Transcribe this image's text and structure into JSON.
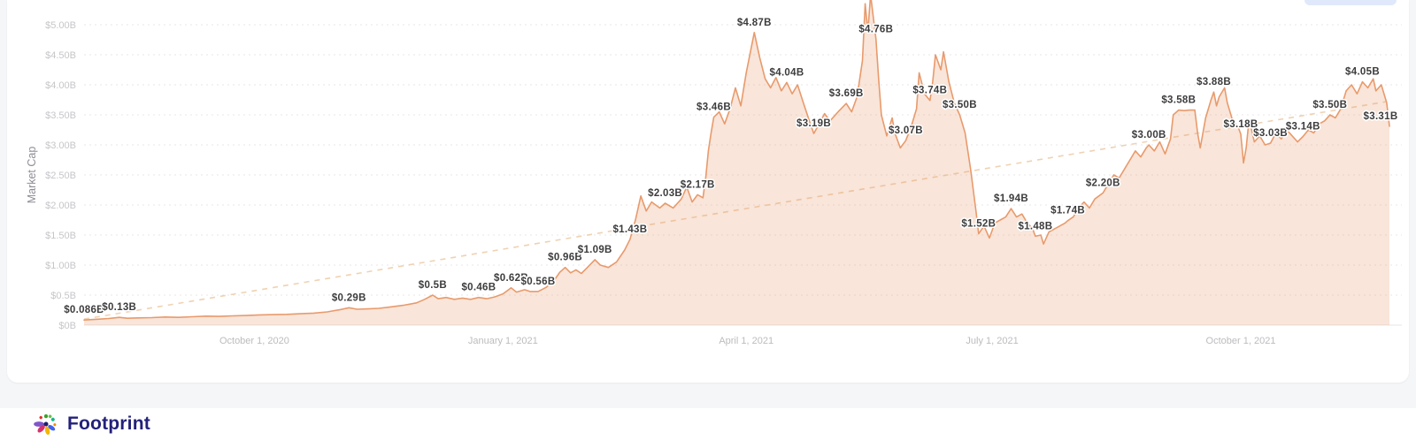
{
  "page": {
    "card_background": "#ffffff",
    "page_background": "#f5f6f8",
    "top_right_partial_element": {
      "color": "#dbe7fb"
    }
  },
  "footer": {
    "brand": "Footprint",
    "brand_color": "#23217a",
    "logo_petal_colors": [
      "#8056c9",
      "#d6336c",
      "#f2b705",
      "#4263eb",
      "#40a02b",
      "#69c046",
      "#12b886",
      "#e0312e",
      "#f08c00",
      "#1e1d6e"
    ]
  },
  "chart_data": {
    "type": "area",
    "title": "",
    "xlabel": "",
    "ylabel": "Market Cap",
    "ylim": [
      0,
      5.0
    ],
    "grid": "horizontal-dashed",
    "legend": "none",
    "line_color": "#e89a6c",
    "fill_color": "rgba(232,154,108,0.26)",
    "trend_color": "#eccaa4",
    "x_domain": [
      "2020-07-30",
      "2021-11-25"
    ],
    "y_ticks": [
      {
        "value": 0,
        "label": "$0B"
      },
      {
        "value": 0.5,
        "label": "$0.5B"
      },
      {
        "value": 1.0,
        "label": "$1.00B"
      },
      {
        "value": 1.5,
        "label": "$1.50B"
      },
      {
        "value": 2.0,
        "label": "$2.00B"
      },
      {
        "value": 2.5,
        "label": "$2.50B"
      },
      {
        "value": 3.0,
        "label": "$3.00B"
      },
      {
        "value": 3.5,
        "label": "$3.50B"
      },
      {
        "value": 4.0,
        "label": "$4.00B"
      },
      {
        "value": 4.5,
        "label": "$4.50B"
      },
      {
        "value": 5.0,
        "label": "$5.00B"
      }
    ],
    "x_ticks": [
      {
        "date": "2020-10-01",
        "label": "October 1, 2020"
      },
      {
        "date": "2021-01-01",
        "label": "January 1, 2021"
      },
      {
        "date": "2021-04-01",
        "label": "April 1, 2021"
      },
      {
        "date": "2021-07-01",
        "label": "July 1, 2021"
      },
      {
        "date": "2021-10-01",
        "label": "October 1, 2021"
      }
    ],
    "trend": {
      "style": "dashed",
      "from": [
        "2020-07-30",
        0.1
      ],
      "to": [
        "2021-11-24",
        3.72
      ]
    },
    "series": [
      {
        "name": "Market Cap",
        "points": [
          [
            "2020-07-30",
            0.086
          ],
          [
            "2020-08-04",
            0.098
          ],
          [
            "2020-08-08",
            0.11
          ],
          [
            "2020-08-12",
            0.13
          ],
          [
            "2020-08-15",
            0.115
          ],
          [
            "2020-08-19",
            0.12
          ],
          [
            "2020-08-24",
            0.125
          ],
          [
            "2020-08-29",
            0.135
          ],
          [
            "2020-09-03",
            0.13
          ],
          [
            "2020-09-08",
            0.14
          ],
          [
            "2020-09-13",
            0.15
          ],
          [
            "2020-09-18",
            0.145
          ],
          [
            "2020-09-23",
            0.155
          ],
          [
            "2020-09-28",
            0.16
          ],
          [
            "2020-10-03",
            0.17
          ],
          [
            "2020-10-08",
            0.175
          ],
          [
            "2020-10-13",
            0.18
          ],
          [
            "2020-10-18",
            0.19
          ],
          [
            "2020-10-23",
            0.2
          ],
          [
            "2020-10-28",
            0.22
          ],
          [
            "2020-11-02",
            0.26
          ],
          [
            "2020-11-05",
            0.29
          ],
          [
            "2020-11-08",
            0.265
          ],
          [
            "2020-11-12",
            0.27
          ],
          [
            "2020-11-16",
            0.28
          ],
          [
            "2020-11-20",
            0.3
          ],
          [
            "2020-11-25",
            0.33
          ],
          [
            "2020-11-30",
            0.37
          ],
          [
            "2020-12-03",
            0.43
          ],
          [
            "2020-12-06",
            0.5
          ],
          [
            "2020-12-08",
            0.44
          ],
          [
            "2020-12-11",
            0.46
          ],
          [
            "2020-12-14",
            0.43
          ],
          [
            "2020-12-17",
            0.45
          ],
          [
            "2020-12-20",
            0.43
          ],
          [
            "2020-12-23",
            0.46
          ],
          [
            "2020-12-26",
            0.44
          ],
          [
            "2020-12-29",
            0.47
          ],
          [
            "2021-01-01",
            0.52
          ],
          [
            "2021-01-04",
            0.62
          ],
          [
            "2021-01-06",
            0.55
          ],
          [
            "2021-01-09",
            0.59
          ],
          [
            "2021-01-11",
            0.56
          ],
          [
            "2021-01-14",
            0.56
          ],
          [
            "2021-01-17",
            0.63
          ],
          [
            "2021-01-20",
            0.75
          ],
          [
            "2021-01-22",
            0.88
          ],
          [
            "2021-01-24",
            0.96
          ],
          [
            "2021-01-26",
            0.87
          ],
          [
            "2021-01-28",
            0.92
          ],
          [
            "2021-01-30",
            0.86
          ],
          [
            "2021-02-01",
            0.95
          ],
          [
            "2021-02-04",
            1.09
          ],
          [
            "2021-02-06",
            1.0
          ],
          [
            "2021-02-09",
            0.96
          ],
          [
            "2021-02-12",
            1.05
          ],
          [
            "2021-02-15",
            1.25
          ],
          [
            "2021-02-17",
            1.43
          ],
          [
            "2021-02-19",
            1.75
          ],
          [
            "2021-02-21",
            2.15
          ],
          [
            "2021-02-23",
            1.9
          ],
          [
            "2021-02-25",
            2.05
          ],
          [
            "2021-02-28",
            1.95
          ],
          [
            "2021-03-02",
            2.03
          ],
          [
            "2021-03-05",
            1.95
          ],
          [
            "2021-03-08",
            2.1
          ],
          [
            "2021-03-10",
            2.3
          ],
          [
            "2021-03-12",
            2.05
          ],
          [
            "2021-03-14",
            2.17
          ],
          [
            "2021-03-16",
            2.12
          ],
          [
            "2021-03-17",
            2.45
          ],
          [
            "2021-03-18",
            2.9
          ],
          [
            "2021-03-19",
            3.2
          ],
          [
            "2021-03-20",
            3.46
          ],
          [
            "2021-03-22",
            3.55
          ],
          [
            "2021-03-24",
            3.35
          ],
          [
            "2021-03-26",
            3.6
          ],
          [
            "2021-03-28",
            3.95
          ],
          [
            "2021-03-30",
            3.65
          ],
          [
            "2021-04-01",
            4.2
          ],
          [
            "2021-04-04",
            4.87
          ],
          [
            "2021-04-06",
            4.45
          ],
          [
            "2021-04-08",
            4.1
          ],
          [
            "2021-04-10",
            3.95
          ],
          [
            "2021-04-12",
            4.12
          ],
          [
            "2021-04-14",
            3.9
          ],
          [
            "2021-04-16",
            4.04
          ],
          [
            "2021-04-18",
            3.85
          ],
          [
            "2021-04-20",
            4.0
          ],
          [
            "2021-04-22",
            3.72
          ],
          [
            "2021-04-24",
            3.45
          ],
          [
            "2021-04-26",
            3.19
          ],
          [
            "2021-04-28",
            3.35
          ],
          [
            "2021-04-30",
            3.52
          ],
          [
            "2021-05-02",
            3.4
          ],
          [
            "2021-05-05",
            3.55
          ],
          [
            "2021-05-08",
            3.69
          ],
          [
            "2021-05-10",
            3.55
          ],
          [
            "2021-05-12",
            3.8
          ],
          [
            "2021-05-14",
            4.4
          ],
          [
            "2021-05-15",
            5.35
          ],
          [
            "2021-05-16",
            4.88
          ],
          [
            "2021-05-17",
            5.5
          ],
          [
            "2021-05-19",
            4.76
          ],
          [
            "2021-05-20",
            4.1
          ],
          [
            "2021-05-21",
            3.5
          ],
          [
            "2021-05-23",
            3.15
          ],
          [
            "2021-05-25",
            3.45
          ],
          [
            "2021-05-26",
            3.2
          ],
          [
            "2021-05-28",
            2.95
          ],
          [
            "2021-05-30",
            3.07
          ],
          [
            "2021-06-01",
            3.3
          ],
          [
            "2021-06-03",
            3.6
          ],
          [
            "2021-06-04",
            4.2
          ],
          [
            "2021-06-06",
            3.85
          ],
          [
            "2021-06-08",
            3.74
          ],
          [
            "2021-06-09",
            4.05
          ],
          [
            "2021-06-10",
            4.5
          ],
          [
            "2021-06-12",
            4.25
          ],
          [
            "2021-06-13",
            4.55
          ],
          [
            "2021-06-15",
            4.05
          ],
          [
            "2021-06-17",
            3.7
          ],
          [
            "2021-06-19",
            3.5
          ],
          [
            "2021-06-21",
            3.2
          ],
          [
            "2021-06-23",
            2.6
          ],
          [
            "2021-06-25",
            1.9
          ],
          [
            "2021-06-26",
            1.52
          ],
          [
            "2021-06-28",
            1.65
          ],
          [
            "2021-06-30",
            1.45
          ],
          [
            "2021-07-02",
            1.7
          ],
          [
            "2021-07-04",
            1.75
          ],
          [
            "2021-07-06",
            1.8
          ],
          [
            "2021-07-08",
            1.94
          ],
          [
            "2021-07-10",
            1.8
          ],
          [
            "2021-07-12",
            1.85
          ],
          [
            "2021-07-14",
            1.7
          ],
          [
            "2021-07-16",
            1.6
          ],
          [
            "2021-07-17",
            1.48
          ],
          [
            "2021-07-19",
            1.5
          ],
          [
            "2021-07-20",
            1.35
          ],
          [
            "2021-07-22",
            1.55
          ],
          [
            "2021-07-24",
            1.6
          ],
          [
            "2021-07-26",
            1.65
          ],
          [
            "2021-07-28",
            1.7
          ],
          [
            "2021-07-29",
            1.74
          ],
          [
            "2021-07-31",
            1.8
          ],
          [
            "2021-08-02",
            1.95
          ],
          [
            "2021-08-04",
            2.05
          ],
          [
            "2021-08-06",
            1.95
          ],
          [
            "2021-08-08",
            2.1
          ],
          [
            "2021-08-11",
            2.2
          ],
          [
            "2021-08-13",
            2.35
          ],
          [
            "2021-08-15",
            2.5
          ],
          [
            "2021-08-17",
            2.45
          ],
          [
            "2021-08-19",
            2.6
          ],
          [
            "2021-08-21",
            2.75
          ],
          [
            "2021-08-23",
            2.9
          ],
          [
            "2021-08-25",
            2.8
          ],
          [
            "2021-08-27",
            2.95
          ],
          [
            "2021-08-28",
            3.0
          ],
          [
            "2021-08-30",
            2.9
          ],
          [
            "2021-09-01",
            3.05
          ],
          [
            "2021-09-03",
            2.85
          ],
          [
            "2021-09-05",
            3.1
          ],
          [
            "2021-09-06",
            3.5
          ],
          [
            "2021-09-08",
            3.58
          ],
          [
            "2021-09-10",
            3.57
          ],
          [
            "2021-09-12",
            3.58
          ],
          [
            "2021-09-14",
            3.58
          ],
          [
            "2021-09-15",
            3.2
          ],
          [
            "2021-09-16",
            2.95
          ],
          [
            "2021-09-18",
            3.45
          ],
          [
            "2021-09-20",
            3.75
          ],
          [
            "2021-09-21",
            3.88
          ],
          [
            "2021-09-22",
            3.65
          ],
          [
            "2021-09-23",
            3.8
          ],
          [
            "2021-09-25",
            3.95
          ],
          [
            "2021-09-26",
            3.7
          ],
          [
            "2021-09-28",
            3.4
          ],
          [
            "2021-09-30",
            3.3
          ],
          [
            "2021-10-01",
            3.18
          ],
          [
            "2021-10-02",
            2.7
          ],
          [
            "2021-10-03",
            2.95
          ],
          [
            "2021-10-04",
            3.4
          ],
          [
            "2021-10-05",
            3.25
          ],
          [
            "2021-10-06",
            3.05
          ],
          [
            "2021-10-08",
            3.15
          ],
          [
            "2021-10-10",
            3.0
          ],
          [
            "2021-10-12",
            3.03
          ],
          [
            "2021-10-14",
            3.2
          ],
          [
            "2021-10-16",
            3.1
          ],
          [
            "2021-10-18",
            3.25
          ],
          [
            "2021-10-20",
            3.15
          ],
          [
            "2021-10-22",
            3.05
          ],
          [
            "2021-10-24",
            3.14
          ],
          [
            "2021-10-26",
            3.25
          ],
          [
            "2021-10-28",
            3.2
          ],
          [
            "2021-10-30",
            3.35
          ],
          [
            "2021-11-01",
            3.4
          ],
          [
            "2021-11-03",
            3.5
          ],
          [
            "2021-11-05",
            3.45
          ],
          [
            "2021-11-07",
            3.6
          ],
          [
            "2021-11-09",
            3.9
          ],
          [
            "2021-11-11",
            4.0
          ],
          [
            "2021-11-13",
            3.85
          ],
          [
            "2021-11-15",
            4.05
          ],
          [
            "2021-11-17",
            3.95
          ],
          [
            "2021-11-19",
            4.1
          ],
          [
            "2021-11-20",
            3.9
          ],
          [
            "2021-11-22",
            4.0
          ],
          [
            "2021-11-24",
            3.7
          ],
          [
            "2021-11-25",
            3.31
          ]
        ]
      }
    ],
    "annotations": [
      {
        "date": "2020-07-30",
        "value": 0.086,
        "label": "$0.086B"
      },
      {
        "date": "2020-08-12",
        "value": 0.13,
        "label": "$0.13B"
      },
      {
        "date": "2020-11-05",
        "value": 0.29,
        "label": "$0.29B"
      },
      {
        "date": "2020-12-06",
        "value": 0.5,
        "label": "$0.5B"
      },
      {
        "date": "2020-12-23",
        "value": 0.46,
        "label": "$0.46B"
      },
      {
        "date": "2021-01-04",
        "value": 0.62,
        "label": "$0.62B"
      },
      {
        "date": "2021-01-14",
        "value": 0.56,
        "label": "$0.56B"
      },
      {
        "date": "2021-01-24",
        "value": 0.96,
        "label": "$0.96B"
      },
      {
        "date": "2021-02-04",
        "value": 1.09,
        "label": "$1.09B"
      },
      {
        "date": "2021-02-17",
        "value": 1.43,
        "label": "$1.43B"
      },
      {
        "date": "2021-03-02",
        "value": 2.03,
        "label": "$2.03B"
      },
      {
        "date": "2021-03-14",
        "value": 2.17,
        "label": "$2.17B"
      },
      {
        "date": "2021-03-20",
        "value": 3.46,
        "label": "$3.46B"
      },
      {
        "date": "2021-04-04",
        "value": 4.87,
        "label": "$4.87B"
      },
      {
        "date": "2021-04-16",
        "value": 4.04,
        "label": "$4.04B"
      },
      {
        "date": "2021-04-26",
        "value": 3.19,
        "label": "$3.19B"
      },
      {
        "date": "2021-05-08",
        "value": 3.69,
        "label": "$3.69B"
      },
      {
        "date": "2021-05-19",
        "value": 4.76,
        "label": "$4.76B"
      },
      {
        "date": "2021-05-30",
        "value": 3.07,
        "label": "$3.07B"
      },
      {
        "date": "2021-06-08",
        "value": 3.74,
        "label": "$3.74B"
      },
      {
        "date": "2021-06-19",
        "value": 3.5,
        "label": "$3.50B"
      },
      {
        "date": "2021-06-26",
        "value": 1.52,
        "label": "$1.52B"
      },
      {
        "date": "2021-07-08",
        "value": 1.94,
        "label": "$1.94B"
      },
      {
        "date": "2021-07-17",
        "value": 1.48,
        "label": "$1.48B"
      },
      {
        "date": "2021-07-29",
        "value": 1.74,
        "label": "$1.74B"
      },
      {
        "date": "2021-08-11",
        "value": 2.2,
        "label": "$2.20B"
      },
      {
        "date": "2021-08-28",
        "value": 3.0,
        "label": "$3.00B"
      },
      {
        "date": "2021-09-08",
        "value": 3.58,
        "label": "$3.58B"
      },
      {
        "date": "2021-09-21",
        "value": 3.88,
        "label": "$3.88B"
      },
      {
        "date": "2021-10-01",
        "value": 3.18,
        "label": "$3.18B"
      },
      {
        "date": "2021-10-12",
        "value": 3.03,
        "label": "$3.03B"
      },
      {
        "date": "2021-10-24",
        "value": 3.14,
        "label": "$3.14B"
      },
      {
        "date": "2021-11-03",
        "value": 3.5,
        "label": "$3.50B"
      },
      {
        "date": "2021-11-15",
        "value": 4.05,
        "label": "$4.05B"
      },
      {
        "date": "2021-11-25",
        "value": 3.31,
        "label": "$3.31B"
      }
    ]
  }
}
